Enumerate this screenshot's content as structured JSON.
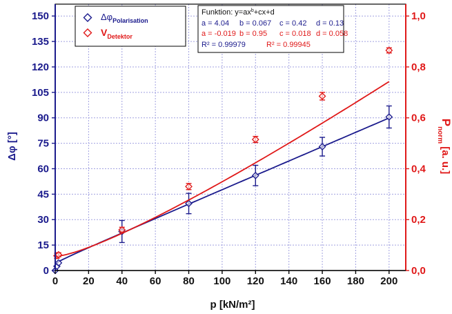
{
  "colors": {
    "blue": "#1a1a8c",
    "red": "#e01818",
    "grid": "#a0a0e0",
    "axis": "#000000"
  },
  "chart_data": {
    "type": "line",
    "title": "",
    "xlabel": "p [kN/m²]",
    "ylabel_left_base": "Δφ",
    "ylabel_left_unit": " [°]",
    "ylabel_right_base": "P",
    "ylabel_right_sub": "norm",
    "ylabel_right_unit": " [a. u.]",
    "xlim": [
      0,
      210
    ],
    "ylim_left": [
      0,
      157
    ],
    "ylim_right": [
      0,
      1.0467
    ],
    "grid": true,
    "legend_placement": "top-left",
    "x_ticks": [
      "0",
      "20",
      "40",
      "60",
      "80",
      "100",
      "120",
      "140",
      "160",
      "180",
      "200"
    ],
    "x_tick_values": [
      0,
      20,
      40,
      60,
      80,
      100,
      120,
      140,
      160,
      180,
      200
    ],
    "y_left_ticks": [
      "0",
      "15",
      "30",
      "45",
      "60",
      "75",
      "90",
      "105",
      "120",
      "135",
      "150"
    ],
    "y_left_tick_values": [
      0,
      15,
      30,
      45,
      60,
      75,
      90,
      105,
      120,
      135,
      150
    ],
    "y_right_ticks": [
      "0,0",
      "0,2",
      "0,4",
      "0,6",
      "0,8",
      "1,0"
    ],
    "y_right_tick_values": [
      0,
      0.2,
      0.4,
      0.6,
      0.8,
      1.0
    ],
    "series": [
      {
        "name_base": "Δφ",
        "name_sub": "Polarisation",
        "axis": "left",
        "color": "#1a1a8c",
        "marker": "diamond",
        "x": [
          0,
          1,
          2,
          40,
          80,
          120,
          160,
          200
        ],
        "y": [
          0,
          2.5,
          4.5,
          23,
          39.5,
          56,
          73,
          90.5
        ],
        "err": [
          0,
          0,
          0,
          6.5,
          6,
          6,
          5.5,
          6.5
        ],
        "fit": {
          "a": 4.04,
          "b": 0.067,
          "c": 0.42,
          "d": 0.13
        }
      },
      {
        "name_base": "V",
        "name_sub": "Detektor",
        "axis": "right",
        "color": "#e01818",
        "marker": "diamond",
        "x": [
          1,
          2,
          40,
          80,
          120,
          160,
          200
        ],
        "y": [
          0.058,
          0.062,
          0.16,
          0.33,
          0.515,
          0.685,
          0.865
        ],
        "err": [
          0.01,
          0.008,
          0.01,
          0.012,
          0.012,
          0.015,
          0.01
        ],
        "fit": {
          "a": -0.019,
          "b": 0.95,
          "c": 0.018,
          "d": 0.058
        }
      }
    ],
    "fit_box": {
      "line1_prefix": "Funktion: y=ax",
      "line1_sup": "b",
      "line1_suffix": "+cx+d",
      "blue_row": [
        "a = 4.04",
        "b = 0.067",
        "c = 0.42",
        "d = 0.13"
      ],
      "red_row": [
        "a = -0.019",
        "b = 0.95",
        "c = 0.018",
        "d = 0.058"
      ],
      "r2_blue": "R² = 0.99979",
      "r2_red": "R² = 0.99945"
    }
  }
}
